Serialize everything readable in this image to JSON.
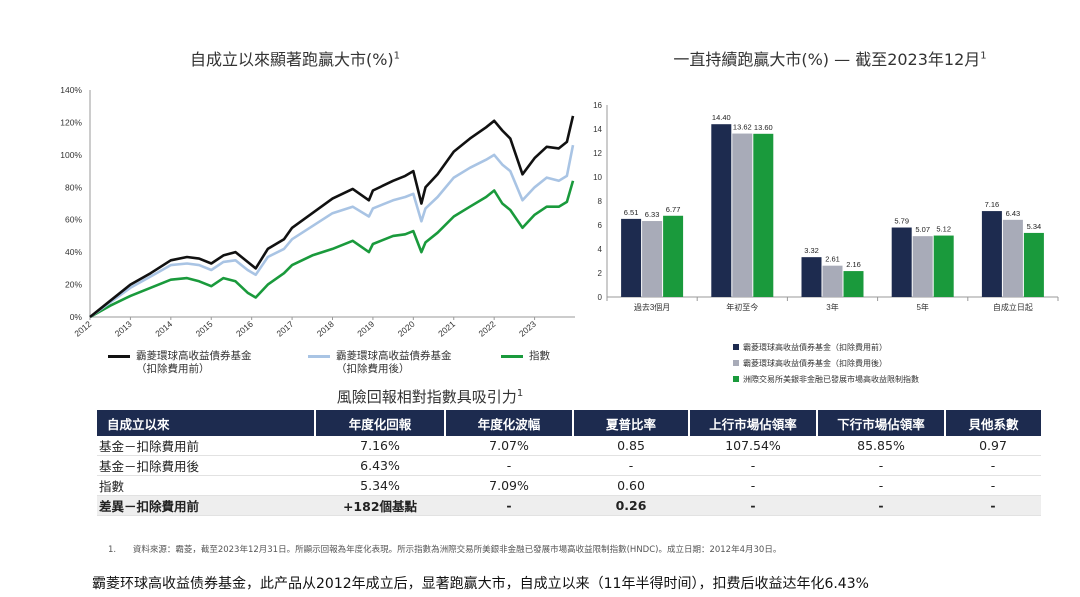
{
  "left_chart": {
    "title": "自成立以來顯著跑贏大市(%)",
    "title_sup": "1",
    "y_ticks": [
      "140%",
      "120%",
      "100%",
      "80%",
      "60%",
      "40%",
      "20%",
      "0%"
    ],
    "x_ticks": [
      "2012",
      "2013",
      "2014",
      "2015",
      "2016",
      "2017",
      "2018",
      "2019",
      "2020",
      "2021",
      "2022",
      "2023"
    ],
    "legend": [
      {
        "label_line1": "霸菱環球高收益債券基金",
        "label_line2": "（扣除費用前）",
        "color": "#111111"
      },
      {
        "label_line1": "霸菱環球高收益債券基金",
        "label_line2": "（扣除費用後）",
        "color": "#a9c4e4"
      },
      {
        "label_line1": "指數",
        "label_line2": "",
        "color": "#1a9a3c"
      }
    ]
  },
  "right_title": {
    "text": "一直持續跑贏大市(%) — 截至2023年12月",
    "sup": "1"
  },
  "chart_data": [
    {
      "type": "line",
      "title": "自成立以來顯著跑贏大市(%)",
      "ylabel": "%",
      "ylim": [
        0,
        140
      ],
      "x": [
        2012.0,
        2012.5,
        2013.0,
        2013.5,
        2014.0,
        2014.4,
        2014.7,
        2015.0,
        2015.3,
        2015.6,
        2015.9,
        2016.1,
        2016.4,
        2016.8,
        2017.0,
        2017.5,
        2018.0,
        2018.5,
        2018.9,
        2019.0,
        2019.5,
        2019.8,
        2020.0,
        2020.2,
        2020.3,
        2020.6,
        2021.0,
        2021.4,
        2021.8,
        2022.0,
        2022.2,
        2022.4,
        2022.7,
        2023.0,
        2023.3,
        2023.6,
        2023.8,
        2023.95
      ],
      "series": [
        {
          "name": "霸菱環球高收益債券基金（扣除費用前）",
          "color": "#111111",
          "values": [
            0,
            10,
            20,
            27,
            35,
            37,
            36,
            33,
            38,
            40,
            34,
            30,
            42,
            48,
            55,
            64,
            73,
            79,
            72,
            78,
            84,
            87,
            90,
            70,
            80,
            88,
            102,
            110,
            117,
            121,
            115,
            110,
            88,
            98,
            105,
            104,
            108,
            124
          ]
        },
        {
          "name": "霸菱環球高收益債券基金（扣除費用後）",
          "color": "#a9c4e4",
          "values": [
            0,
            9,
            18,
            25,
            32,
            33,
            32,
            29,
            34,
            35,
            29,
            26,
            37,
            42,
            48,
            56,
            64,
            68,
            62,
            67,
            72,
            74,
            76,
            59,
            67,
            74,
            86,
            92,
            97,
            100,
            94,
            90,
            72,
            80,
            86,
            84,
            87,
            106
          ]
        },
        {
          "name": "指數",
          "color": "#1a9a3c",
          "values": [
            0,
            7,
            13,
            18,
            23,
            24,
            22,
            19,
            24,
            22,
            15,
            12,
            20,
            27,
            32,
            38,
            42,
            47,
            40,
            45,
            50,
            51,
            53,
            40,
            46,
            52,
            62,
            68,
            74,
            78,
            70,
            66,
            55,
            63,
            68,
            68,
            71,
            84
          ]
        }
      ]
    },
    {
      "type": "bar",
      "title": "一直持續跑贏大市(%) — 截至2023年12月",
      "ylim": [
        0,
        16
      ],
      "y_ticks": [
        "16",
        "14",
        "12",
        "10",
        "8",
        "6",
        "4",
        "2",
        "0"
      ],
      "categories": [
        "過去3個月",
        "年初至今",
        "3年",
        "5年",
        "自成立日起"
      ],
      "series": [
        {
          "name": "霸菱環球高收益債券基金（扣除費用前）",
          "color": "#1d2b4f",
          "values": [
            6.51,
            14.4,
            3.32,
            5.79,
            7.16
          ],
          "labels": [
            "6.51",
            "14.40",
            "3.32",
            "5.79",
            "7.16"
          ]
        },
        {
          "name": "霸菱環球高收益債券基金（扣除費用後）",
          "color": "#a8abb8",
          "values": [
            6.33,
            13.62,
            2.61,
            5.07,
            6.43
          ],
          "labels": [
            "6.33",
            "13.62",
            "2.61",
            "5.07",
            "6.43"
          ]
        },
        {
          "name": "洲際交易所美銀非金融已發展市場高收益限制指數",
          "color": "#1a9a3c",
          "values": [
            6.77,
            13.6,
            2.16,
            5.12,
            5.34
          ],
          "labels": [
            "6.77",
            "13.60",
            "2.16",
            "5.12",
            "5.34"
          ]
        }
      ]
    }
  ],
  "bar_legend": [
    {
      "label": "霸菱環球高收益債券基金（扣除費用前）",
      "color": "#1d2b4f"
    },
    {
      "label": "霸菱環球高收益債券基金（扣除費用後）",
      "color": "#a8abb8"
    },
    {
      "label": "洲際交易所美銀非金融已發展市場高收益限制指數",
      "color": "#1a9a3c"
    }
  ],
  "table": {
    "title": "風險回報相對指數具吸引力",
    "title_sup": "1",
    "headers": [
      "自成立以來",
      "年度化回報",
      "年度化波幅",
      "夏普比率",
      "上行市場佔領率",
      "下行市場佔領率",
      "貝他系數"
    ],
    "rows": [
      [
        "基金－扣除費用前",
        "7.16%",
        "7.07%",
        "0.85",
        "107.54%",
        "85.85%",
        "0.97"
      ],
      [
        "基金－扣除費用後",
        "6.43%",
        "-",
        "-",
        "-",
        "-",
        "-"
      ],
      [
        "指數",
        "5.34%",
        "7.09%",
        "0.60",
        "-",
        "-",
        "-"
      ],
      [
        "差異－扣除費用前",
        "+182個基點",
        "-",
        "0.26",
        "-",
        "-",
        "-"
      ]
    ]
  },
  "footnote": {
    "number": "1.",
    "text": "資料來源：霸菱，截至2023年12月31日。所顯示回報為年度化表現。所示指數為洲際交易所美銀非金融已發展市場高收益限制指數(HNDC)。成立日期：2012年4月30日。"
  },
  "caption": "霸菱环球高收益债券基金，此产品从2012年成立后，显著跑赢大市，自成立以来（11年半得时间），扣费后收益达年化6.43%"
}
